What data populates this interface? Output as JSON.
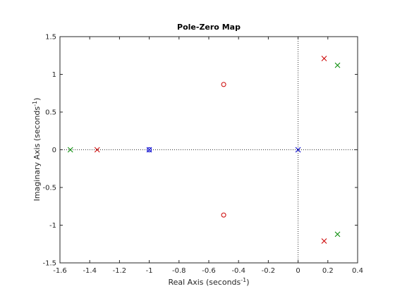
{
  "chart_data": {
    "type": "scatter",
    "title": "Pole-Zero Map",
    "xlabel": {
      "text": "Real Axis (seconds",
      "sup": "-1",
      "close": ")"
    },
    "ylabel": {
      "text": "Imaginary Axis (seconds",
      "sup": "-1",
      "close": ")"
    },
    "xlim": [
      -1.6,
      0.4
    ],
    "ylim": [
      -1.5,
      1.5
    ],
    "xticks": [
      -1.6,
      -1.4,
      -1.2,
      -1,
      -0.8,
      -0.6,
      -0.4,
      -0.2,
      0,
      0.2,
      0.4
    ],
    "xtick_labels": [
      "-1.6",
      "-1.4",
      "-1.2",
      "-1",
      "-0.8",
      "-0.6",
      "-0.4",
      "-0.2",
      "0",
      "0.2",
      "0.4"
    ],
    "yticks": [
      -1.5,
      -1,
      -0.5,
      0,
      0.5,
      1,
      1.5
    ],
    "ytick_labels": [
      "-1.5",
      "-1",
      "-0.5",
      "0",
      "0.5",
      "1",
      "1.5"
    ],
    "grid": false,
    "series": [
      {
        "color": "#cc0000",
        "poles": [
          [
            -1.35,
            0
          ],
          [
            0.175,
            1.21
          ],
          [
            0.175,
            -1.21
          ]
        ],
        "zeros": [
          [
            -0.5,
            0.866
          ],
          [
            -0.5,
            -0.866
          ]
        ]
      },
      {
        "color": "#008800",
        "poles": [
          [
            -1.53,
            0
          ],
          [
            0.265,
            1.12
          ],
          [
            0.265,
            -1.12
          ]
        ],
        "zeros": []
      },
      {
        "color": "#0000cc",
        "poles": [
          [
            -1,
            0
          ],
          [
            0,
            0
          ]
        ],
        "zeros": [
          [
            -1,
            0
          ]
        ]
      }
    ]
  }
}
